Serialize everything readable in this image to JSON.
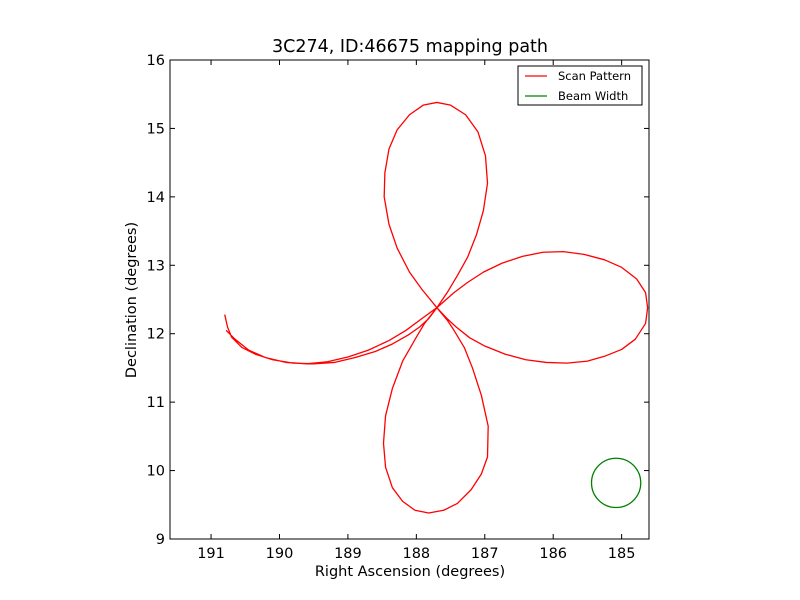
{
  "chart_data": {
    "type": "line",
    "title": "3C274, ID:46675 mapping path",
    "xlabel": "Right Ascension (degrees)",
    "ylabel": "Declination (degrees)",
    "xlim": [
      191.6,
      184.6
    ],
    "ylim": [
      9,
      16
    ],
    "x_axis_inverted": true,
    "xticks": [
      191,
      190,
      189,
      188,
      187,
      186,
      185
    ],
    "yticks": [
      9,
      10,
      11,
      12,
      13,
      14,
      15,
      16
    ],
    "grid": false,
    "legend_position": "top-right",
    "series": [
      {
        "name": "Scan Pattern",
        "color": "#ff0000",
        "style": "line",
        "points": [
          [
            190.8,
            12.28
          ],
          [
            190.76,
            12.1
          ],
          [
            190.7,
            11.95
          ],
          [
            190.55,
            11.8
          ],
          [
            190.35,
            11.7
          ],
          [
            190.1,
            11.62
          ],
          [
            189.8,
            11.57
          ],
          [
            189.5,
            11.56
          ],
          [
            189.2,
            11.58
          ],
          [
            188.9,
            11.65
          ],
          [
            188.6,
            11.74
          ],
          [
            188.35,
            11.85
          ],
          [
            188.12,
            11.98
          ],
          [
            187.95,
            12.1
          ],
          [
            187.82,
            12.22
          ],
          [
            187.7,
            12.38
          ],
          [
            187.55,
            12.22
          ],
          [
            187.42,
            12.1
          ],
          [
            187.22,
            11.94
          ],
          [
            187.0,
            11.82
          ],
          [
            186.7,
            11.7
          ],
          [
            186.4,
            11.62
          ],
          [
            186.1,
            11.58
          ],
          [
            185.8,
            11.57
          ],
          [
            185.5,
            11.6
          ],
          [
            185.25,
            11.67
          ],
          [
            185.0,
            11.77
          ],
          [
            184.8,
            11.92
          ],
          [
            184.65,
            12.15
          ],
          [
            184.62,
            12.38
          ],
          [
            184.65,
            12.6
          ],
          [
            184.78,
            12.8
          ],
          [
            185.0,
            12.97
          ],
          [
            185.25,
            13.08
          ],
          [
            185.55,
            13.16
          ],
          [
            185.85,
            13.2
          ],
          [
            186.15,
            13.19
          ],
          [
            186.45,
            13.13
          ],
          [
            186.75,
            13.03
          ],
          [
            187.02,
            12.9
          ],
          [
            187.25,
            12.75
          ],
          [
            187.45,
            12.6
          ],
          [
            187.7,
            12.38
          ],
          [
            187.55,
            12.2
          ],
          [
            187.45,
            12.05
          ],
          [
            187.3,
            11.8
          ],
          [
            187.18,
            11.5
          ],
          [
            187.05,
            11.1
          ],
          [
            186.95,
            10.65
          ],
          [
            186.96,
            10.2
          ],
          [
            187.05,
            9.95
          ],
          [
            187.2,
            9.72
          ],
          [
            187.4,
            9.52
          ],
          [
            187.6,
            9.42
          ],
          [
            187.82,
            9.38
          ],
          [
            188.02,
            9.42
          ],
          [
            188.2,
            9.55
          ],
          [
            188.35,
            9.75
          ],
          [
            188.45,
            10.05
          ],
          [
            188.48,
            10.4
          ],
          [
            188.45,
            10.8
          ],
          [
            188.35,
            11.2
          ],
          [
            188.2,
            11.6
          ],
          [
            188.0,
            11.95
          ],
          [
            187.88,
            12.15
          ],
          [
            187.7,
            12.38
          ],
          [
            187.55,
            12.6
          ],
          [
            187.4,
            12.85
          ],
          [
            187.25,
            13.12
          ],
          [
            187.12,
            13.45
          ],
          [
            187.02,
            13.8
          ],
          [
            186.96,
            14.2
          ],
          [
            186.99,
            14.6
          ],
          [
            187.1,
            14.95
          ],
          [
            187.28,
            15.2
          ],
          [
            187.5,
            15.34
          ],
          [
            187.7,
            15.38
          ],
          [
            187.9,
            15.34
          ],
          [
            188.1,
            15.2
          ],
          [
            188.28,
            14.98
          ],
          [
            188.4,
            14.7
          ],
          [
            188.46,
            14.35
          ],
          [
            188.47,
            14.0
          ],
          [
            188.4,
            13.6
          ],
          [
            188.28,
            13.25
          ],
          [
            188.1,
            12.9
          ],
          [
            187.92,
            12.65
          ],
          [
            187.7,
            12.38
          ],
          [
            187.92,
            12.22
          ],
          [
            188.15,
            12.05
          ],
          [
            188.4,
            11.9
          ],
          [
            188.7,
            11.76
          ],
          [
            189.0,
            11.66
          ],
          [
            189.3,
            11.59
          ],
          [
            189.6,
            11.56
          ],
          [
            189.9,
            11.58
          ],
          [
            190.2,
            11.65
          ],
          [
            190.45,
            11.76
          ],
          [
            190.65,
            11.92
          ],
          [
            190.78,
            12.05
          ]
        ]
      },
      {
        "name": "Beam Width",
        "color": "#008000",
        "style": "circle",
        "center": [
          185.08,
          9.82
        ],
        "radius_deg": 0.36
      }
    ]
  }
}
